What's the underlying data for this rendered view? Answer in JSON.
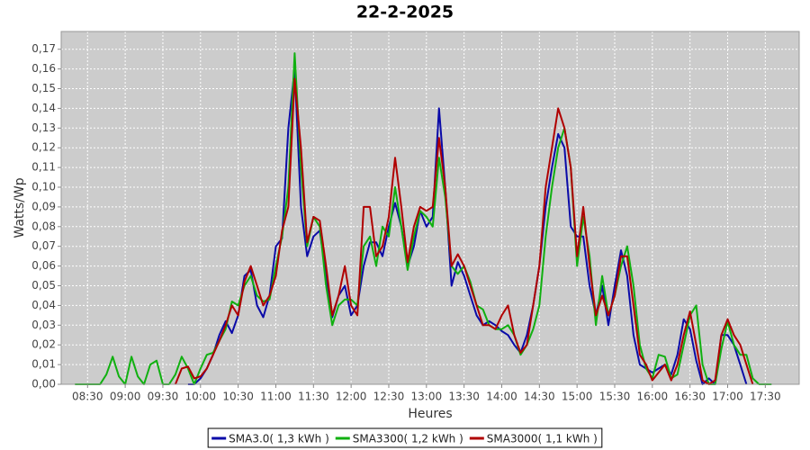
{
  "chart_data": {
    "type": "line",
    "title": "22-2-2025",
    "x_label": "Heures",
    "y_label": "Watts/Wp",
    "x": [
      500,
      505,
      510,
      515,
      520,
      525,
      530,
      535,
      540,
      545,
      550,
      555,
      560,
      565,
      570,
      575,
      580,
      585,
      590,
      595,
      600,
      605,
      610,
      615,
      620,
      625,
      630,
      635,
      640,
      645,
      650,
      655,
      660,
      665,
      670,
      675,
      680,
      685,
      690,
      695,
      700,
      705,
      710,
      715,
      720,
      725,
      730,
      735,
      740,
      745,
      750,
      755,
      760,
      765,
      770,
      775,
      780,
      785,
      790,
      795,
      800,
      805,
      810,
      815,
      820,
      825,
      830,
      835,
      840,
      845,
      850,
      855,
      860,
      865,
      870,
      875,
      880,
      885,
      890,
      895,
      900,
      905,
      910,
      915,
      920,
      925,
      930,
      935,
      940,
      945,
      950,
      955,
      960,
      965,
      970,
      975,
      980,
      985,
      990,
      995,
      1000,
      1005,
      1010,
      1015,
      1020,
      1025,
      1030,
      1035,
      1040,
      1045,
      1050,
      1055
    ],
    "series": [
      {
        "name": "SMA3.0( 1,3 kWh )",
        "color": "#0a0aa8",
        "values": [
          null,
          null,
          null,
          null,
          null,
          null,
          null,
          null,
          null,
          null,
          null,
          null,
          null,
          null,
          null,
          null,
          null,
          null,
          0,
          0,
          0.003,
          0.008,
          0.015,
          0.025,
          0.032,
          0.026,
          0.035,
          0.055,
          0.058,
          0.04,
          0.034,
          0.045,
          0.07,
          0.074,
          0.13,
          0.16,
          0.09,
          0.065,
          0.075,
          0.078,
          0.055,
          0.034,
          0.045,
          0.05,
          0.035,
          0.04,
          0.06,
          0.072,
          0.072,
          0.065,
          0.08,
          0.092,
          0.08,
          0.06,
          0.07,
          0.088,
          0.08,
          0.085,
          0.14,
          0.1,
          0.05,
          0.062,
          0.055,
          0.045,
          0.035,
          0.03,
          0.032,
          0.03,
          0.027,
          0.025,
          0.02,
          0.016,
          0.025,
          0.04,
          0.06,
          0.09,
          0.11,
          0.127,
          0.12,
          0.08,
          0.075,
          0.075,
          0.05,
          0.035,
          0.05,
          0.03,
          0.05,
          0.068,
          0.055,
          0.025,
          0.01,
          0.008,
          0.006,
          0.008,
          0.01,
          0.005,
          0.015,
          0.033,
          0.028,
          0.012,
          0,
          0.003,
          0,
          0.025,
          0.025,
          0.02,
          0.01,
          0,
          null,
          null,
          null,
          null
        ]
      },
      {
        "name": "SMA3300( 1,2 kWh )",
        "color": "#10b010",
        "values": [
          0,
          0,
          0,
          0,
          0,
          0.005,
          0.014,
          0.004,
          0,
          0.014,
          0.004,
          0,
          0.01,
          0.012,
          0,
          0,
          0.005,
          0.014,
          0.008,
          0,
          0.008,
          0.015,
          0.016,
          0.022,
          0.028,
          0.042,
          0.04,
          0.05,
          0.055,
          0.045,
          0.042,
          0.043,
          0.06,
          0.075,
          0.1,
          0.168,
          0.11,
          0.07,
          0.085,
          0.08,
          0.05,
          0.03,
          0.04,
          0.043,
          0.043,
          0.04,
          0.07,
          0.075,
          0.06,
          0.08,
          0.075,
          0.1,
          0.08,
          0.058,
          0.075,
          0.088,
          0.085,
          0.08,
          0.115,
          0.095,
          0.06,
          0.056,
          0.06,
          0.052,
          0.04,
          0.038,
          0.03,
          0.028,
          0.028,
          0.03,
          0.025,
          0.015,
          0.02,
          0.028,
          0.04,
          0.075,
          0.1,
          0.12,
          0.13,
          0.11,
          0.06,
          0.085,
          0.065,
          0.03,
          0.055,
          0.035,
          0.045,
          0.06,
          0.07,
          0.05,
          0.02,
          0.008,
          0.003,
          0.015,
          0.014,
          0.003,
          0.005,
          0.02,
          0.035,
          0.04,
          0.01,
          0,
          0,
          0.018,
          0.032,
          0.02,
          0.015,
          0.015,
          0.003,
          0,
          0,
          0
        ]
      },
      {
        "name": "SMA3000( 1,1 kWh )",
        "color": "#b00000",
        "values": [
          null,
          null,
          null,
          null,
          null,
          null,
          null,
          null,
          null,
          null,
          null,
          null,
          null,
          null,
          null,
          null,
          0,
          0.008,
          0.009,
          0.003,
          0.004,
          0.008,
          0.015,
          0.022,
          0.03,
          0.04,
          0.035,
          0.052,
          0.06,
          0.05,
          0.04,
          0.045,
          0.055,
          0.078,
          0.09,
          0.155,
          0.12,
          0.072,
          0.085,
          0.083,
          0.06,
          0.035,
          0.045,
          0.06,
          0.04,
          0.035,
          0.09,
          0.09,
          0.065,
          0.07,
          0.085,
          0.115,
          0.09,
          0.062,
          0.08,
          0.09,
          0.088,
          0.09,
          0.125,
          0.1,
          0.06,
          0.066,
          0.06,
          0.05,
          0.04,
          0.03,
          0.03,
          0.028,
          0.035,
          0.04,
          0.025,
          0.016,
          0.02,
          0.04,
          0.06,
          0.1,
          0.12,
          0.14,
          0.13,
          0.11,
          0.065,
          0.09,
          0.06,
          0.035,
          0.045,
          0.035,
          0.045,
          0.065,
          0.065,
          0.04,
          0.015,
          0.01,
          0.002,
          0.006,
          0.01,
          0.002,
          0.01,
          0.025,
          0.037,
          0.02,
          0.002,
          0,
          0.002,
          0.025,
          0.033,
          0.025,
          0.02,
          0.01,
          0,
          null,
          null,
          null
        ]
      }
    ],
    "xlim": [
      489,
      1077
    ],
    "xticks": [
      {
        "value": 510,
        "label": "08:30"
      },
      {
        "value": 540,
        "label": "09:00"
      },
      {
        "value": 570,
        "label": "09:30"
      },
      {
        "value": 600,
        "label": "10:00"
      },
      {
        "value": 630,
        "label": "10:30"
      },
      {
        "value": 660,
        "label": "11:00"
      },
      {
        "value": 690,
        "label": "11:30"
      },
      {
        "value": 720,
        "label": "12:00"
      },
      {
        "value": 750,
        "label": "12:30"
      },
      {
        "value": 780,
        "label": "13:00"
      },
      {
        "value": 810,
        "label": "13:30"
      },
      {
        "value": 840,
        "label": "14:00"
      },
      {
        "value": 870,
        "label": "14:30"
      },
      {
        "value": 900,
        "label": "15:00"
      },
      {
        "value": 930,
        "label": "15:30"
      },
      {
        "value": 960,
        "label": "16:00"
      },
      {
        "value": 990,
        "label": "16:30"
      },
      {
        "value": 1020,
        "label": "17:00"
      },
      {
        "value": 1050,
        "label": "17:30"
      }
    ],
    "ylim": [
      0,
      0.179
    ],
    "yticks": [
      {
        "value": 0,
        "label": "0,00"
      },
      {
        "value": 0.01,
        "label": "0,01"
      },
      {
        "value": 0.02,
        "label": "0,02"
      },
      {
        "value": 0.03,
        "label": "0,03"
      },
      {
        "value": 0.04,
        "label": "0,04"
      },
      {
        "value": 0.05,
        "label": "0,05"
      },
      {
        "value": 0.06,
        "label": "0,06"
      },
      {
        "value": 0.07,
        "label": "0,07"
      },
      {
        "value": 0.08,
        "label": "0,08"
      },
      {
        "value": 0.09,
        "label": "0,09"
      },
      {
        "value": 0.1,
        "label": "0,10"
      },
      {
        "value": 0.11,
        "label": "0,11"
      },
      {
        "value": 0.12,
        "label": "0,12"
      },
      {
        "value": 0.13,
        "label": "0,13"
      },
      {
        "value": 0.14,
        "label": "0,14"
      },
      {
        "value": 0.15,
        "label": "0,15"
      },
      {
        "value": 0.16,
        "label": "0,16"
      },
      {
        "value": 0.17,
        "label": "0,17"
      }
    ],
    "grid": true
  }
}
